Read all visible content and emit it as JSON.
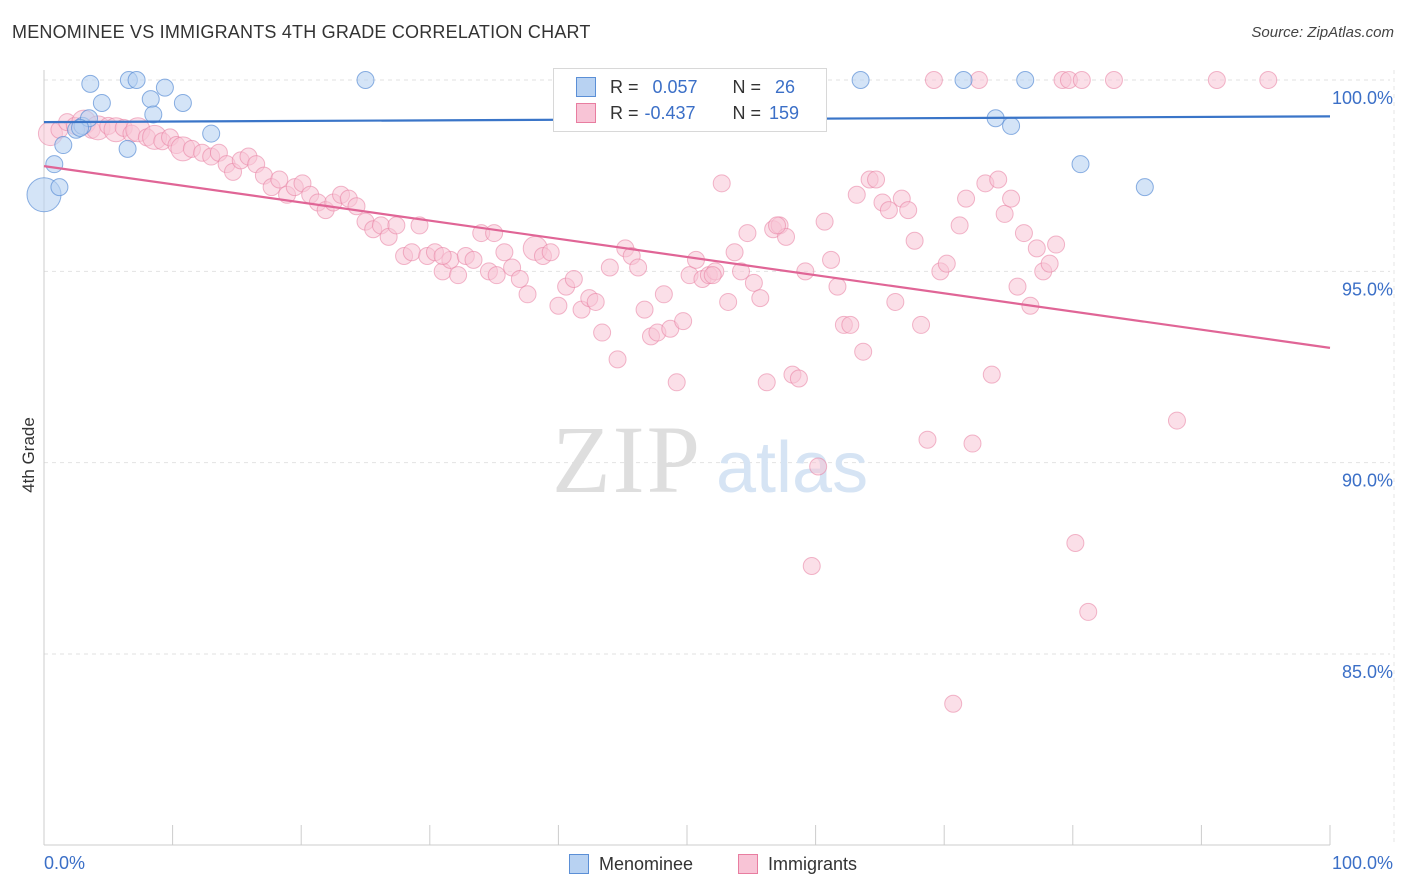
{
  "header": {
    "title": "MENOMINEE VS IMMIGRANTS 4TH GRADE CORRELATION CHART",
    "source_label": "Source:",
    "source_value": "ZipAtlas.com"
  },
  "legend_top": {
    "rows": [
      {
        "r_label": "R =",
        "r_value": "0.057",
        "n_label": "N =",
        "n_value": "26",
        "color": "#a8c8f0",
        "border": "#5b8fd6"
      },
      {
        "r_label": "R =",
        "r_value": "-0.437",
        "n_label": "N =",
        "n_value": "159",
        "color": "#f8bcd0",
        "border": "#e87da0"
      }
    ]
  },
  "legend_bottom": {
    "items": [
      {
        "label": "Menominee",
        "color": "#a8c8f0",
        "border": "#5b8fd6"
      },
      {
        "label": "Immigrants",
        "color": "#f8bcd0",
        "border": "#e87da0"
      }
    ]
  },
  "watermark": {
    "part1": "ZIP",
    "part2": "atlas"
  },
  "chart_data": {
    "type": "scatter",
    "title": "MENOMINEE VS IMMIGRANTS 4TH GRADE CORRELATION CHART",
    "xlabel": "",
    "ylabel": "4th Grade",
    "xlim": [
      0,
      100
    ],
    "ylim": [
      80.5,
      100.6
    ],
    "x_tick_labels": [
      "0.0%",
      "100.0%"
    ],
    "y_ticks": [
      100,
      95,
      90,
      85
    ],
    "y_tick_labels": [
      "100.0%",
      "95.0%",
      "90.0%",
      "85.0%"
    ],
    "grid": true,
    "colors": {
      "menominee": "#5b8fd6",
      "menominee_fill": "#b8d2f2",
      "menominee_line": "#3a75c8",
      "immigrants": "#e87da0",
      "immigrants_fill": "#f8c4d6",
      "immigrants_line": "#e06596",
      "tick_label": "#3b6fc7"
    },
    "series": [
      {
        "name": "Menominee",
        "trend": {
          "x0": 0,
          "y0": 98.9,
          "x1": 100,
          "y1": 99.05
        },
        "points": [
          [
            0,
            97.0,
            2
          ],
          [
            1.2,
            97.2,
            1
          ],
          [
            0.8,
            97.8,
            1
          ],
          [
            1.5,
            98.3,
            1
          ],
          [
            2.5,
            98.7,
            1
          ],
          [
            3,
            98.8,
            1
          ],
          [
            3.5,
            99.0,
            1
          ],
          [
            4.5,
            99.4,
            1
          ],
          [
            3.6,
            99.9,
            1
          ],
          [
            6.5,
            98.2,
            1
          ],
          [
            6.6,
            100,
            1
          ],
          [
            7.2,
            100,
            1
          ],
          [
            8.3,
            99.5,
            1
          ],
          [
            8.5,
            99.1,
            1
          ],
          [
            9.4,
            99.8,
            1
          ],
          [
            10.8,
            99.4,
            1
          ],
          [
            13,
            98.6,
            1
          ],
          [
            25,
            100,
            1
          ],
          [
            63.5,
            100,
            1
          ],
          [
            71.5,
            100,
            1
          ],
          [
            76.3,
            100,
            1
          ],
          [
            74,
            99.0,
            1
          ],
          [
            75.2,
            98.8,
            1
          ],
          [
            80.6,
            97.8,
            1
          ],
          [
            85.6,
            97.2,
            1
          ],
          [
            2.8,
            98.75,
            1
          ]
        ]
      },
      {
        "name": "Immigrants",
        "trend": {
          "x0": 0,
          "y0": 97.75,
          "x1": 100,
          "y1": 93.0
        },
        "points": [
          [
            0.5,
            98.6,
            2
          ],
          [
            1.2,
            98.7,
            1
          ],
          [
            1.8,
            98.9,
            1
          ],
          [
            2.4,
            98.8,
            1
          ],
          [
            3.1,
            98.9,
            2
          ],
          [
            3.7,
            98.7,
            1
          ],
          [
            4.2,
            98.75,
            2
          ],
          [
            5.0,
            98.8,
            1
          ],
          [
            5.6,
            98.7,
            2
          ],
          [
            6.2,
            98.75,
            1
          ],
          [
            6.8,
            98.6,
            1
          ],
          [
            7.3,
            98.7,
            2
          ],
          [
            8,
            98.5,
            1
          ],
          [
            8.6,
            98.5,
            2
          ],
          [
            9.2,
            98.4,
            1
          ],
          [
            9.8,
            98.5,
            1
          ],
          [
            10.3,
            98.3,
            1
          ],
          [
            10.8,
            98.2,
            2
          ],
          [
            11.5,
            98.2,
            1
          ],
          [
            12.3,
            98.1,
            1
          ],
          [
            13.0,
            98.0,
            1
          ],
          [
            13.6,
            98.1,
            1
          ],
          [
            14.2,
            97.8,
            1
          ],
          [
            14.7,
            97.6,
            1
          ],
          [
            15.3,
            97.9,
            1
          ],
          [
            15.9,
            98.0,
            1
          ],
          [
            16.5,
            97.8,
            1
          ],
          [
            17.1,
            97.5,
            1
          ],
          [
            17.7,
            97.2,
            1
          ],
          [
            18.3,
            97.4,
            1
          ],
          [
            18.9,
            97.0,
            1
          ],
          [
            19.5,
            97.2,
            1
          ],
          [
            20.1,
            97.3,
            1
          ],
          [
            20.7,
            97.0,
            1
          ],
          [
            21.3,
            96.8,
            1
          ],
          [
            21.9,
            96.6,
            1
          ],
          [
            22.5,
            96.8,
            1
          ],
          [
            23.1,
            97.0,
            1
          ],
          [
            23.7,
            96.9,
            1
          ],
          [
            24.3,
            96.7,
            1
          ],
          [
            25.0,
            96.3,
            1
          ],
          [
            25.6,
            96.1,
            1
          ],
          [
            26.2,
            96.2,
            1
          ],
          [
            26.8,
            95.9,
            1
          ],
          [
            27.4,
            96.2,
            1
          ],
          [
            28.0,
            95.4,
            1
          ],
          [
            28.6,
            95.5,
            1
          ],
          [
            29.2,
            96.2,
            1
          ],
          [
            29.8,
            95.4,
            1
          ],
          [
            30.4,
            95.5,
            1
          ],
          [
            31.0,
            95.0,
            1
          ],
          [
            31.6,
            95.3,
            1
          ],
          [
            32.2,
            94.9,
            1
          ],
          [
            32.8,
            95.4,
            1
          ],
          [
            33.4,
            95.3,
            1
          ],
          [
            34.0,
            96.0,
            1
          ],
          [
            34.6,
            95.0,
            1
          ],
          [
            35.2,
            94.9,
            1
          ],
          [
            35.8,
            95.5,
            1
          ],
          [
            36.4,
            95.1,
            1
          ],
          [
            37.0,
            94.8,
            1
          ],
          [
            37.6,
            94.4,
            1
          ],
          [
            38.2,
            95.6,
            2
          ],
          [
            38.8,
            95.4,
            1
          ],
          [
            39.4,
            95.5,
            1
          ],
          [
            40.0,
            94.1,
            1
          ],
          [
            40.6,
            94.6,
            1
          ],
          [
            41.2,
            94.8,
            1
          ],
          [
            41.8,
            94.0,
            1
          ],
          [
            42.4,
            94.3,
            1
          ],
          [
            42.9,
            94.2,
            1
          ],
          [
            43.4,
            93.4,
            1
          ],
          [
            44.0,
            95.1,
            1
          ],
          [
            44.6,
            92.7,
            1
          ],
          [
            45.2,
            95.6,
            1
          ],
          [
            45.7,
            95.4,
            1
          ],
          [
            46.2,
            95.1,
            1
          ],
          [
            46.7,
            94.0,
            1
          ],
          [
            47.2,
            93.3,
            1
          ],
          [
            47.7,
            93.4,
            1
          ],
          [
            48.2,
            94.4,
            1
          ],
          [
            48.7,
            93.5,
            1
          ],
          [
            49.2,
            92.1,
            1
          ],
          [
            49.7,
            93.7,
            1
          ],
          [
            50.2,
            94.9,
            1
          ],
          [
            50.7,
            95.3,
            1
          ],
          [
            51.2,
            94.8,
            1
          ],
          [
            51.7,
            94.9,
            1
          ],
          [
            52.2,
            95.0,
            1
          ],
          [
            52.7,
            97.3,
            1
          ],
          [
            53.2,
            94.2,
            1
          ],
          [
            53.7,
            95.5,
            1
          ],
          [
            54.2,
            95.0,
            1
          ],
          [
            54.7,
            96.0,
            1
          ],
          [
            55.2,
            94.7,
            1
          ],
          [
            55.7,
            94.3,
            1
          ],
          [
            56.2,
            92.1,
            1
          ],
          [
            56.7,
            96.1,
            1
          ],
          [
            57.2,
            96.2,
            1
          ],
          [
            57.7,
            95.9,
            1
          ],
          [
            58.2,
            92.3,
            1
          ],
          [
            58.7,
            92.2,
            1
          ],
          [
            59.2,
            95.0,
            1
          ],
          [
            59.7,
            87.3,
            1
          ],
          [
            60.2,
            89.9,
            1
          ],
          [
            60.7,
            96.3,
            1
          ],
          [
            61.2,
            95.3,
            1
          ],
          [
            61.7,
            94.6,
            1
          ],
          [
            62.2,
            93.6,
            1
          ],
          [
            62.7,
            93.6,
            1
          ],
          [
            63.2,
            97.0,
            1
          ],
          [
            63.7,
            92.9,
            1
          ],
          [
            64.2,
            97.4,
            1
          ],
          [
            64.7,
            97.4,
            1
          ],
          [
            65.2,
            96.8,
            1
          ],
          [
            65.7,
            96.6,
            1
          ],
          [
            66.2,
            94.2,
            1
          ],
          [
            66.7,
            96.9,
            1
          ],
          [
            67.2,
            96.6,
            1
          ],
          [
            67.7,
            95.8,
            1
          ],
          [
            68.2,
            93.6,
            1
          ],
          [
            68.7,
            90.6,
            1
          ],
          [
            69.2,
            100,
            1
          ],
          [
            69.7,
            95.0,
            1
          ],
          [
            70.2,
            95.2,
            1
          ],
          [
            70.7,
            83.7,
            1
          ],
          [
            71.2,
            96.2,
            1
          ],
          [
            71.7,
            96.9,
            1
          ],
          [
            72.2,
            90.5,
            1
          ],
          [
            72.7,
            100,
            1
          ],
          [
            73.2,
            97.3,
            1
          ],
          [
            73.7,
            92.3,
            1
          ],
          [
            74.2,
            97.4,
            1
          ],
          [
            74.7,
            96.5,
            1
          ],
          [
            75.2,
            96.9,
            1
          ],
          [
            75.7,
            94.6,
            1
          ],
          [
            76.2,
            96.0,
            1
          ],
          [
            76.7,
            94.1,
            1
          ],
          [
            77.2,
            95.6,
            1
          ],
          [
            77.7,
            95.0,
            1
          ],
          [
            78.2,
            95.2,
            1
          ],
          [
            78.7,
            95.7,
            1
          ],
          [
            79.2,
            100,
            1
          ],
          [
            79.7,
            100,
            1
          ],
          [
            80.2,
            87.9,
            1
          ],
          [
            80.7,
            100,
            1
          ],
          [
            81.2,
            86.1,
            1
          ],
          [
            83.2,
            100,
            1
          ],
          [
            88.1,
            91.1,
            1
          ],
          [
            91.2,
            100,
            1
          ],
          [
            95.2,
            100,
            1
          ],
          [
            31.0,
            95.4,
            1
          ],
          [
            35.0,
            96.0,
            1
          ],
          [
            52.0,
            94.9,
            1
          ],
          [
            57.0,
            96.2,
            1
          ]
        ]
      }
    ]
  }
}
